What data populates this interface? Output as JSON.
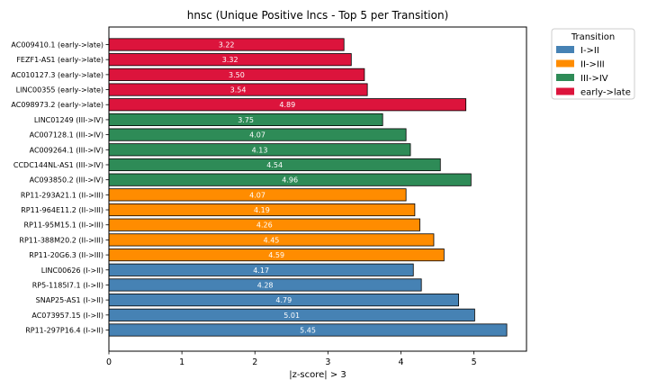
{
  "chart_data": {
    "type": "bar",
    "orientation": "horizontal",
    "title": "hnsc (Unique Positive lncs - Top 5 per Transition)",
    "xlabel": "|z-score| > 3",
    "ylabel": "",
    "xlim": [
      0,
      5.72
    ],
    "xticks": [
      0,
      1,
      2,
      3,
      4,
      5
    ],
    "grid": false,
    "legend": {
      "title": "Transition",
      "placement": "outside-top-right",
      "entries": [
        {
          "name": "I->II",
          "color": "#4682b4"
        },
        {
          "name": "II->III",
          "color": "#ff8c00"
        },
        {
          "name": "III->IV",
          "color": "#2e8b57"
        },
        {
          "name": "early->late",
          "color": "#dc143c"
        }
      ]
    },
    "bars": [
      {
        "label": "AC009410.1 (early->late)",
        "value": 3.22,
        "value_label": "3.22",
        "group": "early->late"
      },
      {
        "label": "FEZF1-AS1 (early->late)",
        "value": 3.32,
        "value_label": "3.32",
        "group": "early->late"
      },
      {
        "label": "AC010127.3 (early->late)",
        "value": 3.5,
        "value_label": "3.50",
        "group": "early->late"
      },
      {
        "label": "LINC00355 (early->late)",
        "value": 3.54,
        "value_label": "3.54",
        "group": "early->late"
      },
      {
        "label": "AC098973.2 (early->late)",
        "value": 4.89,
        "value_label": "4.89",
        "group": "early->late"
      },
      {
        "label": "LINC01249 (III->IV)",
        "value": 3.75,
        "value_label": "3.75",
        "group": "III->IV"
      },
      {
        "label": "AC007128.1 (III->IV)",
        "value": 4.07,
        "value_label": "4.07",
        "group": "III->IV"
      },
      {
        "label": "AC009264.1 (III->IV)",
        "value": 4.13,
        "value_label": "4.13",
        "group": "III->IV"
      },
      {
        "label": "CCDC144NL-AS1 (III->IV)",
        "value": 4.54,
        "value_label": "4.54",
        "group": "III->IV"
      },
      {
        "label": "AC093850.2 (III->IV)",
        "value": 4.96,
        "value_label": "4.96",
        "group": "III->IV"
      },
      {
        "label": "RP11-293A21.1 (II->III)",
        "value": 4.07,
        "value_label": "4.07",
        "group": "II->III"
      },
      {
        "label": "RP11-964E11.2 (II->III)",
        "value": 4.19,
        "value_label": "4.19",
        "group": "II->III"
      },
      {
        "label": "RP11-95M15.1 (II->III)",
        "value": 4.26,
        "value_label": "4.26",
        "group": "II->III"
      },
      {
        "label": "RP11-388M20.2 (II->III)",
        "value": 4.45,
        "value_label": "4.45",
        "group": "II->III"
      },
      {
        "label": "RP11-20G6.3 (II->III)",
        "value": 4.59,
        "value_label": "4.59",
        "group": "II->III"
      },
      {
        "label": "LINC00626 (I->II)",
        "value": 4.17,
        "value_label": "4.17",
        "group": "I->II"
      },
      {
        "label": "RP5-1185I7.1 (I->II)",
        "value": 4.28,
        "value_label": "4.28",
        "group": "I->II"
      },
      {
        "label": "SNAP25-AS1 (I->II)",
        "value": 4.79,
        "value_label": "4.79",
        "group": "I->II"
      },
      {
        "label": "AC073957.15 (I->II)",
        "value": 5.01,
        "value_label": "5.01",
        "group": "I->II"
      },
      {
        "label": "RP11-297P16.4 (I->II)",
        "value": 5.45,
        "value_label": "5.45",
        "group": "I->II"
      }
    ]
  }
}
